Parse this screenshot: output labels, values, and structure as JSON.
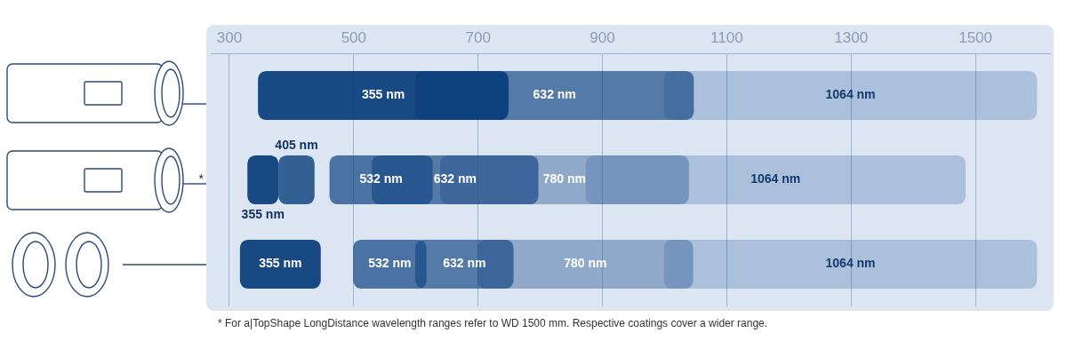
{
  "chart_data": {
    "type": "bar",
    "orientation": "horizontal",
    "categories": [
      null,
      "*",
      null
    ],
    "series": [
      {
        "name": "355 nm",
        "color": "rgba(8,60,122,0.92)",
        "values": [
          [
            346,
            749
          ],
          [
            329,
            379
          ],
          [
            317,
            447
          ]
        ]
      },
      {
        "name": "405 nm",
        "color": "rgba(20,70,130,0.85)",
        "values": [
          null,
          [
            379,
            437
          ],
          null
        ]
      },
      {
        "name": "532 nm",
        "color": "rgba(25,75,135,0.75)",
        "values": [
          null,
          [
            461,
            627
          ],
          [
            499,
            617
          ]
        ]
      },
      {
        "name": "632 nm",
        "color": "rgba(25,75,135,0.7)",
        "values": [
          [
            599,
            1047
          ],
          [
            529,
            797
          ],
          [
            599,
            757
          ]
        ]
      },
      {
        "name": "780 nm",
        "color": "rgba(50,95,155,0.45)",
        "values": [
          null,
          [
            639,
            1039
          ],
          [
            699,
            1046
          ]
        ]
      },
      {
        "name": "1064 nm",
        "color": "rgba(60,105,165,0.3)",
        "values": [
          [
            999,
            1599
          ],
          [
            873,
            1484
          ],
          [
            999,
            1599
          ]
        ]
      }
    ],
    "xlim": [
      270,
      1620
    ],
    "xticks": [
      300,
      500,
      700,
      900,
      1100,
      1300,
      1500
    ],
    "grid": true,
    "footnote": "* For a|TopShape LongDistance wavelength ranges refer to WD 1500 mm. Respective coatings cover a wider range."
  }
}
